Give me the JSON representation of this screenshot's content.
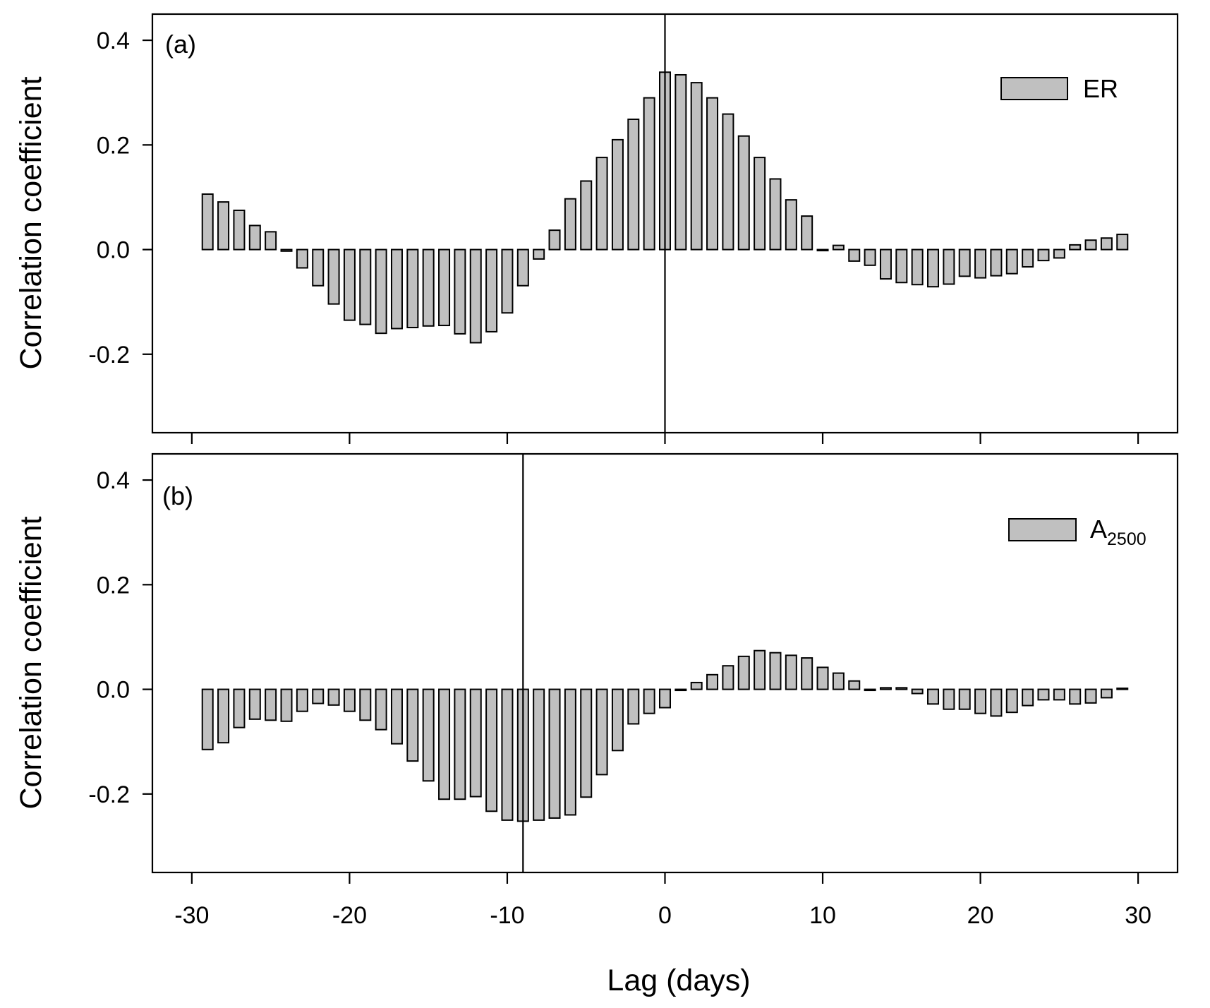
{
  "chart_data": [
    {
      "type": "bar",
      "panel_label": "(a)",
      "ylabel": "Correlation coefficient",
      "xlabel": "Lag (days)",
      "ylim": [
        -0.35,
        0.45
      ],
      "xlim": [
        -32.5,
        32.5
      ],
      "yticks": [
        "0.4",
        "0.2",
        "0.0",
        "-0.2"
      ],
      "ytick_values": [
        0.4,
        0.2,
        0.0,
        -0.2
      ],
      "xtick_values": [
        -30,
        -20,
        -10,
        0,
        10,
        20,
        30
      ],
      "vertical_line_x": 0,
      "legend_position": "top-right",
      "series": [
        {
          "name": "ER",
          "color": "#c0c0c0",
          "x": [
            -29,
            -28,
            -27,
            -26,
            -25,
            -24,
            -23,
            -22,
            -21,
            -20,
            -19,
            -18,
            -17,
            -16,
            -15,
            -14,
            -13,
            -12,
            -11,
            -10,
            -9,
            -8,
            -7,
            -6,
            -5,
            -4,
            -3,
            -2,
            -1,
            0,
            1,
            2,
            3,
            4,
            5,
            6,
            7,
            8,
            9,
            10,
            11,
            12,
            13,
            14,
            15,
            16,
            17,
            18,
            19,
            20,
            21,
            22,
            23,
            24,
            25,
            26,
            27,
            28,
            29
          ],
          "values": [
            0.106,
            0.091,
            0.075,
            0.046,
            0.034,
            -0.003,
            -0.035,
            -0.069,
            -0.104,
            -0.135,
            -0.143,
            -0.16,
            -0.151,
            -0.149,
            -0.146,
            -0.145,
            -0.161,
            -0.178,
            -0.157,
            -0.121,
            -0.069,
            -0.018,
            0.037,
            0.097,
            0.131,
            0.176,
            0.21,
            0.249,
            0.29,
            0.339,
            0.334,
            0.319,
            0.29,
            0.259,
            0.217,
            0.176,
            0.135,
            0.095,
            0.064,
            0.0,
            0.008,
            -0.022,
            -0.03,
            -0.056,
            -0.063,
            -0.067,
            -0.071,
            -0.066,
            -0.051,
            -0.054,
            -0.05,
            -0.046,
            -0.033,
            -0.021,
            -0.016,
            0.009,
            0.018,
            0.022,
            0.029
          ]
        }
      ]
    },
    {
      "type": "bar",
      "panel_label": "(b)",
      "ylabel": "Correlation coefficient",
      "xlabel": "Lag (days)",
      "ylim": [
        -0.35,
        0.45
      ],
      "xlim": [
        -32.5,
        32.5
      ],
      "yticks": [
        "0.4",
        "0.2",
        "0.0",
        "-0.2"
      ],
      "ytick_values": [
        0.4,
        0.2,
        0.0,
        -0.2
      ],
      "xticks": [
        "-30",
        "-20",
        "-10",
        "0",
        "10",
        "20",
        "30"
      ],
      "xtick_values": [
        -30,
        -20,
        -10,
        0,
        10,
        20,
        30
      ],
      "vertical_line_x": -9,
      "legend_position": "top-right",
      "series": [
        {
          "name": "A2500",
          "name_main": "A",
          "name_sub": "2500",
          "color": "#c0c0c0",
          "x": [
            -29,
            -28,
            -27,
            -26,
            -25,
            -24,
            -23,
            -22,
            -21,
            -20,
            -19,
            -18,
            -17,
            -16,
            -15,
            -14,
            -13,
            -12,
            -11,
            -10,
            -9,
            -8,
            -7,
            -6,
            -5,
            -4,
            -3,
            -2,
            -1,
            0,
            1,
            2,
            3,
            4,
            5,
            6,
            7,
            8,
            9,
            10,
            11,
            12,
            13,
            14,
            15,
            16,
            17,
            18,
            19,
            20,
            21,
            22,
            23,
            24,
            25,
            26,
            27,
            28,
            29
          ],
          "values": [
            -0.115,
            -0.102,
            -0.073,
            -0.057,
            -0.059,
            -0.061,
            -0.042,
            -0.027,
            -0.03,
            -0.042,
            -0.059,
            -0.077,
            -0.104,
            -0.137,
            -0.175,
            -0.21,
            -0.21,
            -0.205,
            -0.233,
            -0.25,
            -0.252,
            -0.25,
            -0.246,
            -0.24,
            -0.206,
            -0.163,
            -0.117,
            -0.066,
            -0.046,
            -0.035,
            -0.002,
            0.013,
            0.028,
            0.045,
            0.063,
            0.074,
            0.07,
            0.065,
            0.06,
            0.042,
            0.031,
            0.016,
            -0.002,
            0.003,
            0.003,
            -0.008,
            -0.028,
            -0.038,
            -0.038,
            -0.046,
            -0.051,
            -0.044,
            -0.031,
            -0.02,
            -0.02,
            -0.028,
            -0.026,
            -0.016,
            0.002
          ]
        }
      ]
    }
  ]
}
